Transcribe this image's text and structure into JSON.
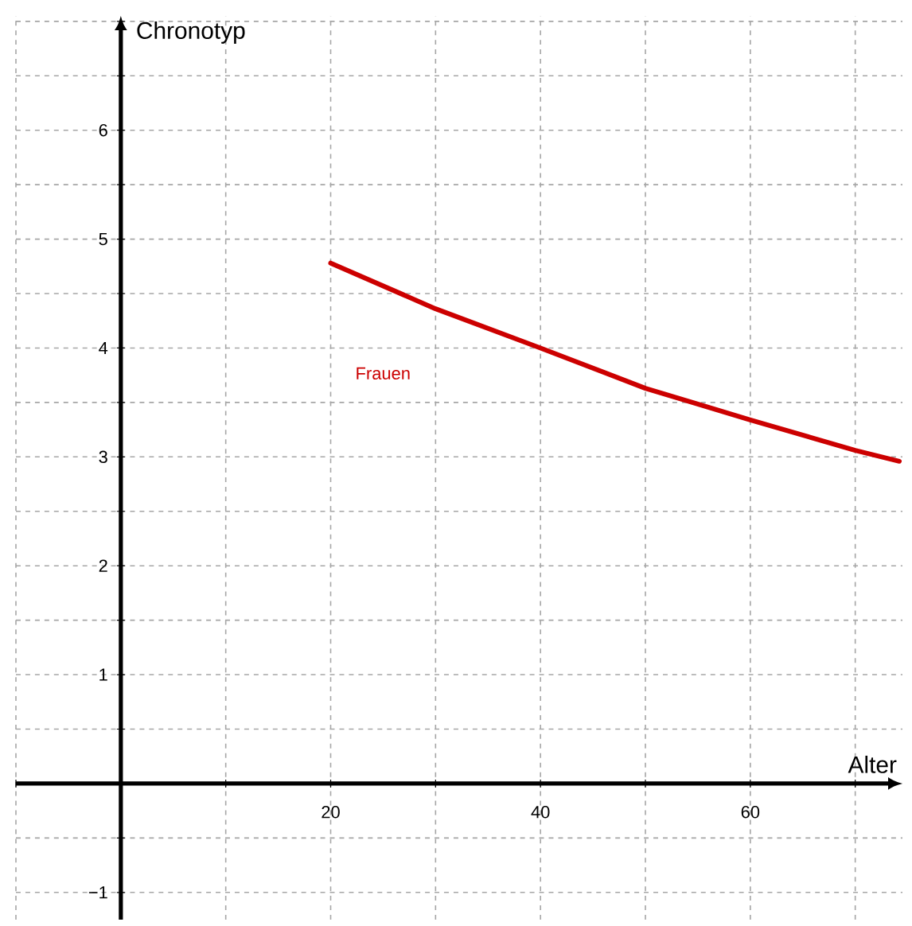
{
  "chart_data": {
    "type": "line",
    "xlabel": "Alter",
    "ylabel": "Chronotyp",
    "xlim": [
      -10,
      74.5
    ],
    "ylim": [
      -1.25,
      7.05
    ],
    "xticks": [
      {
        "value": -10,
        "label": null
      },
      {
        "value": 0,
        "label": null
      },
      {
        "value": 10,
        "label": null
      },
      20,
      {
        "value": 30,
        "label": null
      },
      40,
      {
        "value": 50,
        "label": null
      },
      60,
      {
        "value": 70,
        "label": null
      }
    ],
    "yticks": [
      {
        "value": -1,
        "label": "−1"
      },
      {
        "value": -0.5,
        "label": null
      },
      {
        "value": 0,
        "label": null
      },
      {
        "value": 0.5,
        "label": null
      },
      1,
      {
        "value": 1.5,
        "label": null
      },
      2,
      {
        "value": 2.5,
        "label": null
      },
      3,
      {
        "value": 3.5,
        "label": null
      },
      4,
      {
        "value": 4.5,
        "label": null
      },
      5,
      {
        "value": 5.5,
        "label": null
      },
      6,
      {
        "value": 6.5,
        "label": null
      },
      {
        "value": 7,
        "label": null
      }
    ],
    "grid": true,
    "marker": "none",
    "line_style": "solid",
    "series": [
      {
        "name": "Frauen",
        "color": "#cc0000",
        "x": [
          20,
          30,
          40,
          50,
          60,
          70,
          74.2
        ],
        "values": [
          4.78,
          4.36,
          4.0,
          3.63,
          3.34,
          3.06,
          2.96
        ]
      }
    ]
  }
}
